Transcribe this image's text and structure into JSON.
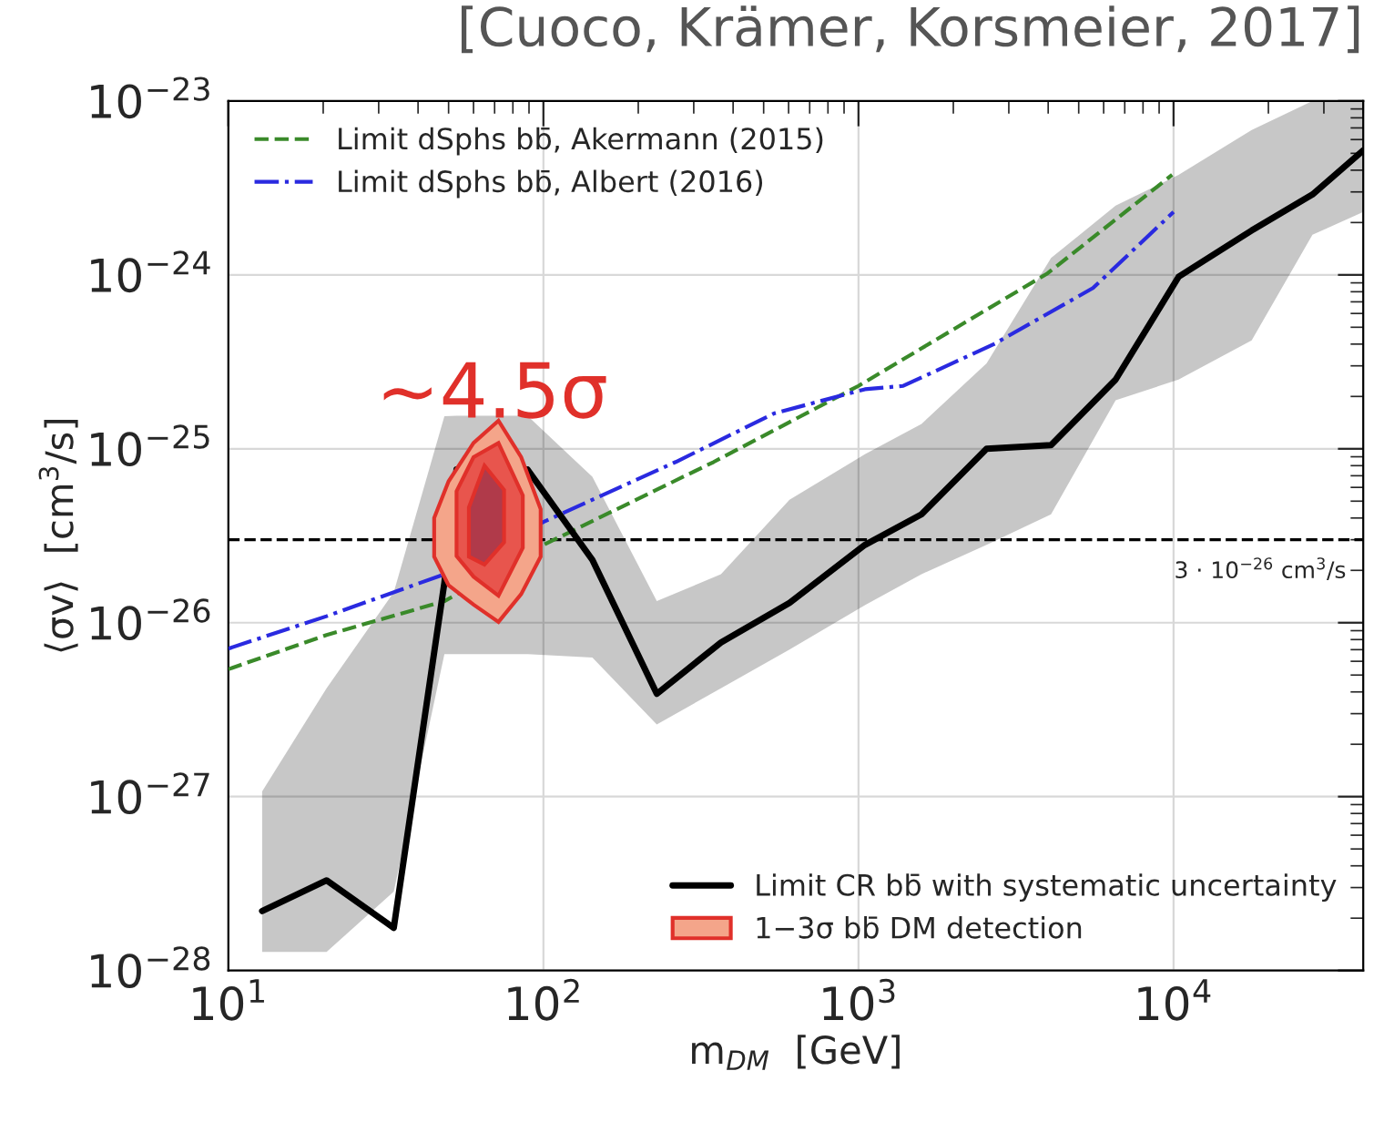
{
  "chart_data": {
    "type": "line",
    "title": "[Cuoco, Krämer, Korsmeier, 2017]",
    "xlabel": "m$_{DM}$  [GeV]",
    "ylabel": "⟨σv⟩  [cm$^{3}$/s]",
    "log": "xy",
    "grid": true,
    "legend": [
      "top left",
      "bottom right"
    ],
    "xlim": [
      10,
      40000
    ],
    "ylim": [
      1e-28,
      1e-23
    ],
    "xticks": [
      {
        "value": 10,
        "label": "10$^{1}$"
      },
      {
        "value": 100,
        "label": "10$^{2}$"
      },
      {
        "value": 1000,
        "label": "10$^{3}$"
      },
      {
        "value": 10000,
        "label": "10$^{4}$"
      }
    ],
    "yticks": [
      {
        "value": 1e-28,
        "label": "10$^{−28}$"
      },
      {
        "value": 1e-27,
        "label": "10$^{−27}$"
      },
      {
        "value": 1e-26,
        "label": "10$^{−26}$"
      },
      {
        "value": 1e-25,
        "label": "10$^{−25}$"
      },
      {
        "value": 1e-24,
        "label": "10$^{−24}$"
      },
      {
        "value": 1e-23,
        "label": "10$^{−23}$"
      }
    ],
    "series": [
      {
        "name": "Limit dSphs bb̄, Akermann (2015)",
        "color": "#3a8a2a",
        "line_style": "dashed",
        "x": [
          10,
          20.5,
          48.5,
          100,
          347,
          1000,
          3980,
          9900
        ],
        "values": [
          5.4e-27,
          8.5e-27,
          1.33e-26,
          2.8e-26,
          8.4e-26,
          2.3e-25,
          1.02e-24,
          3.76e-24
        ]
      },
      {
        "name": "Limit dSphs bb̄, Albert (2016)",
        "color": "#2a2ae0",
        "line_style": "dashdot",
        "x": [
          10,
          20.5,
          48.5,
          100,
          263,
          541,
          1048,
          1387,
          2690,
          5550,
          10000
        ],
        "values": [
          7.1e-27,
          1.09e-26,
          1.9e-26,
          3.8e-26,
          8.4e-26,
          1.6e-25,
          2.2e-25,
          2.3e-25,
          4e-25,
          8.4e-25,
          2.3e-24
        ]
      },
      {
        "name": "Limit CR bb̄ with systematic uncertainty",
        "color": "#000000",
        "line_style": "solid",
        "x": [
          12.8,
          20.5,
          33.5,
          48.5,
          53,
          89,
          143,
          229,
          366,
          604,
          1048,
          1585,
          2550,
          4085,
          6550,
          10375,
          17700,
          27600,
          40000
        ],
        "values": [
          2.2e-28,
          3.3e-28,
          1.76e-28,
          1.7e-26,
          7.6e-26,
          7.6e-26,
          2.3e-26,
          3.9e-27,
          7.7e-27,
          1.3e-26,
          2.8e-26,
          4.2e-26,
          1e-25,
          1.05e-25,
          2.5e-25,
          9.75e-25,
          1.8e-24,
          2.9e-24,
          5.2e-24
        ],
        "lower": [
          1.28e-28,
          1.28e-28,
          2.84e-28,
          6.6e-27,
          6.6e-27,
          6.6e-27,
          6.3e-27,
          2.6e-27,
          4.2e-27,
          7e-27,
          1.26e-26,
          1.9e-26,
          2.8e-26,
          4.2e-26,
          1.9e-25,
          2.5e-25,
          4.2e-25,
          1.7e-24,
          2.3e-24
        ],
        "upper": [
          1.07e-27,
          4.2e-27,
          1.5e-26,
          1.54e-25,
          1.55e-25,
          1.55e-25,
          6.9e-26,
          1.33e-26,
          1.9e-26,
          5.1e-26,
          9.3e-26,
          1.39e-25,
          3.1e-25,
          1.25e-24,
          2.5e-24,
          3.76e-24,
          6.8e-24,
          1e-23,
          1e-23
        ]
      },
      {
        "type": "area",
        "name": "1−3σ bb̄ DM detection",
        "color": "#f4a58a",
        "x": [
          45,
          50,
          60,
          72,
          85,
          98,
          98,
          85,
          72,
          60,
          50,
          45
        ],
        "values": [
          4e-26,
          6.5e-26,
          1.08e-25,
          1.45e-25,
          8.95e-26,
          4.5e-26,
          2.4e-26,
          1.46e-26,
          1.01e-26,
          1.27e-26,
          1.64e-26,
          2.4e-26
        ]
      },
      {
        "type": "area",
        "color": "#e8554d",
        "x": [
          53,
          60,
          72,
          86,
          86,
          72,
          60,
          53
        ],
        "values": [
          5.7e-26,
          8.95e-26,
          1.08e-25,
          5.4e-26,
          2.7e-26,
          1.43e-26,
          1.84e-26,
          2.42e-26
        ]
      },
      {
        "type": "area",
        "color": "#b03a4a",
        "x": [
          58,
          65,
          75,
          75,
          65,
          58
        ],
        "values": [
          4.6e-26,
          8e-26,
          5.8e-26,
          2.9e-26,
          2.16e-26,
          2.4e-26
        ]
      }
    ],
    "ref_lines": [
      {
        "axis": "y",
        "value": 3e-26,
        "label": "3 · 10$^{−26}$ cm$^{3}$/s",
        "color": "#000000",
        "line_style": "dashed"
      }
    ],
    "annotations": [
      "~4.5σ"
    ]
  }
}
